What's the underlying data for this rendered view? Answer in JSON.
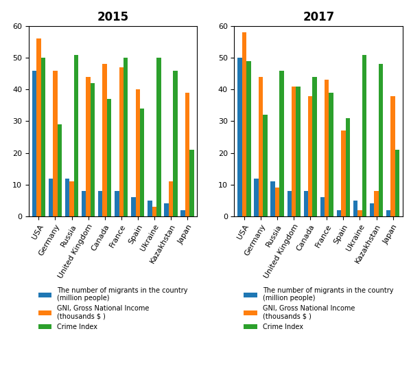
{
  "chart_data": [
    {
      "type": "bar",
      "title": "2015",
      "categories": [
        "USA",
        "Germany",
        "Russia",
        "United Kingdom",
        "Canada",
        "France",
        "Spain",
        "Ukraine",
        "Kazakhstan",
        "Japan"
      ],
      "series": [
        {
          "name": "The number of migrants in the country\n(million people)",
          "values": [
            46,
            12,
            12,
            8,
            8,
            8,
            6,
            5,
            4,
            2
          ]
        },
        {
          "name": "GNI, Gross National Income\n(thousands $ )",
          "values": [
            56,
            46,
            11,
            44,
            48,
            47,
            40,
            3,
            11,
            39
          ]
        },
        {
          "name": "Crime Index",
          "values": [
            50,
            29,
            51,
            42,
            37,
            50,
            34,
            50,
            46,
            21
          ]
        }
      ],
      "ylim": [
        0,
        60
      ],
      "yticks": [
        0,
        10,
        20,
        30,
        40,
        50,
        60
      ],
      "legend": "upper center"
    },
    {
      "type": "bar",
      "title": "2017",
      "categories": [
        "USA",
        "Germany",
        "Russia",
        "United Kingdom",
        "Canada",
        "France",
        "Spain",
        "Ukraine",
        "Kazakhstan",
        "Japan"
      ],
      "series": [
        {
          "name": "The number of migrants in the country\n(million people)",
          "values": [
            50,
            12,
            11,
            8,
            8,
            6,
            2,
            5,
            4,
            2
          ]
        },
        {
          "name": "GNI, Gross National Income\n(thousands $ )",
          "values": [
            58,
            44,
            9,
            41,
            38,
            43,
            27,
            2,
            8,
            38
          ]
        },
        {
          "name": "Crime Index",
          "values": [
            49,
            32,
            46,
            41,
            44,
            39,
            31,
            51,
            48,
            21
          ]
        }
      ],
      "ylim": [
        0,
        60
      ],
      "yticks": [
        0,
        10,
        20,
        30,
        40,
        50,
        60
      ],
      "legend": "upper center"
    }
  ]
}
